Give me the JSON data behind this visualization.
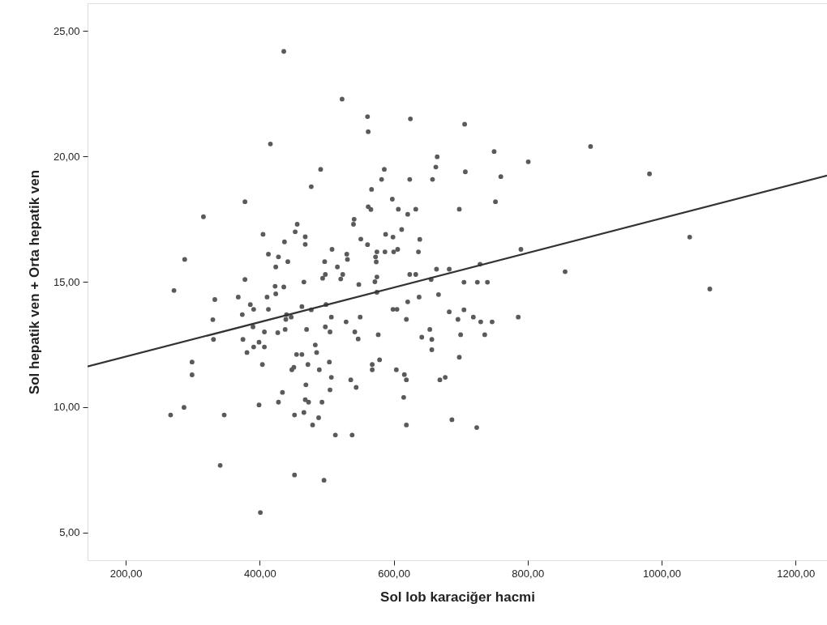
{
  "chart_data": {
    "type": "scatter",
    "xlabel": "Sol lob karaciğer hacmi",
    "ylabel": "Sol hepatik ven + Orta hepatik ven",
    "xlim": [
      143,
      1247
    ],
    "ylim": [
      3.9,
      26.1
    ],
    "xticks": [
      {
        "value": 200,
        "label": "200,00"
      },
      {
        "value": 400,
        "label": "400,00"
      },
      {
        "value": 600,
        "label": "600,00"
      },
      {
        "value": 800,
        "label": "800,00"
      },
      {
        "value": 1000,
        "label": "1000,00"
      },
      {
        "value": 1200,
        "label": "1200,00"
      }
    ],
    "yticks": [
      {
        "value": 5,
        "label": "5,00"
      },
      {
        "value": 10,
        "label": "10,00"
      },
      {
        "value": 15,
        "label": "15,00"
      },
      {
        "value": 20,
        "label": "20,00"
      },
      {
        "value": 25,
        "label": "25,00"
      }
    ],
    "grid": false,
    "marker": "circle",
    "series": [
      {
        "color": "#5a5a5a",
        "x": [
          436,
          523,
          561,
          562,
          625,
          416,
          665,
          663,
          491,
          586,
          582,
          624,
          658,
          477,
          567,
          378,
          598,
          562,
          566,
          607,
          633,
          621,
          316,
          541,
          540,
          456,
          453,
          405,
          612,
          468,
          468,
          437,
          551,
          561,
          588,
          599,
          639,
          508,
          530,
          531,
          575,
          587,
          573,
          574,
          600,
          606,
          637,
          413,
          428,
          442,
          424,
          497,
          516,
          288,
          378,
          498,
          494,
          524,
          521,
          548,
          575,
          572,
          624,
          633,
          664,
          683,
          466,
          423,
          436,
          272,
          656,
          575,
          333,
          368,
          411,
          424,
          386,
          391,
          413,
          374,
          330,
          463,
          477,
          499,
          440,
          447,
          439,
          507,
          529,
          550,
          599,
          605,
          621,
          638,
          667,
          683,
          619,
          390,
          407,
          427,
          438,
          470,
          498,
          505,
          542,
          547,
          577,
          654,
          642,
          657,
          657,
          331,
          375,
          399,
          391,
          407,
          381,
          483,
          485,
          455,
          463,
          299,
          299,
          404,
          472,
          504,
          451,
          448,
          489,
          507,
          568,
          568,
          579,
          604,
          616,
          619,
          669,
          677,
          536,
          544,
          469,
          505,
          434,
          428,
          468,
          473,
          493,
          399,
          615,
          287,
          267,
          347,
          452,
          466,
          488,
          479,
          619,
          687,
          513,
          538,
          341,
          452,
          496,
          401,
          706,
          894,
          750,
          801,
          707,
          760,
          982,
          752,
          698,
          1042,
          790,
          729,
          856,
          705,
          725,
          740,
          1072,
          705,
          696,
          719,
          730,
          747,
          786,
          700,
          736,
          698,
          724
        ],
        "values": [
          24.18,
          22.28,
          21.58,
          20.98,
          21.49,
          20.49,
          19.98,
          19.57,
          19.48,
          19.48,
          19.08,
          19.08,
          19.08,
          18.79,
          18.68,
          18.19,
          18.29,
          17.99,
          17.88,
          17.89,
          17.89,
          17.69,
          17.59,
          17.49,
          17.29,
          17.29,
          16.99,
          16.89,
          17.08,
          16.79,
          16.49,
          16.59,
          16.7,
          16.48,
          16.89,
          16.78,
          16.69,
          16.29,
          16.1,
          15.89,
          16.19,
          16.19,
          15.99,
          15.79,
          16.19,
          16.29,
          16.19,
          16.1,
          15.99,
          15.8,
          15.59,
          15.8,
          15.59,
          15.89,
          15.09,
          15.29,
          15.14,
          15.29,
          15.11,
          14.89,
          15.19,
          15.0,
          15.29,
          15.29,
          15.5,
          15.5,
          14.99,
          14.82,
          14.79,
          14.65,
          15.09,
          14.58,
          14.29,
          14.39,
          14.39,
          14.52,
          14.09,
          13.9,
          13.9,
          13.69,
          13.49,
          14.01,
          13.88,
          14.09,
          13.69,
          13.59,
          13.5,
          13.59,
          13.4,
          13.59,
          13.9,
          13.9,
          14.2,
          14.39,
          14.49,
          13.8,
          13.5,
          13.2,
          13.0,
          12.97,
          13.1,
          13.1,
          13.2,
          13.0,
          13.0,
          12.72,
          12.89,
          13.1,
          12.79,
          12.7,
          12.29,
          12.7,
          12.7,
          12.59,
          12.4,
          12.4,
          12.18,
          12.48,
          12.18,
          12.1,
          12.1,
          11.8,
          11.29,
          11.7,
          11.7,
          11.8,
          11.59,
          11.49,
          11.49,
          11.19,
          11.7,
          11.49,
          11.89,
          11.49,
          11.3,
          11.09,
          11.09,
          11.19,
          11.09,
          10.79,
          10.89,
          10.69,
          10.59,
          10.2,
          10.3,
          10.2,
          10.2,
          10.09,
          10.39,
          9.99,
          9.69,
          9.69,
          9.69,
          9.79,
          9.58,
          9.29,
          9.29,
          9.5,
          8.89,
          8.89,
          7.68,
          7.3,
          7.09,
          5.8,
          21.28,
          20.39,
          20.19,
          19.78,
          19.38,
          19.19,
          19.3,
          18.19,
          17.89,
          16.78,
          16.29,
          15.7,
          15.4,
          14.98,
          14.98,
          14.98,
          14.71,
          13.88,
          13.5,
          13.59,
          13.4,
          13.4,
          13.59,
          12.89,
          12.89,
          11.99,
          9.19
        ]
      },
      {
        "type": "line",
        "marker": "none",
        "line_style": "solid",
        "color": "#333333",
        "x": [
          143,
          1247
        ],
        "values": [
          11.62,
          19.23
        ]
      }
    ]
  }
}
